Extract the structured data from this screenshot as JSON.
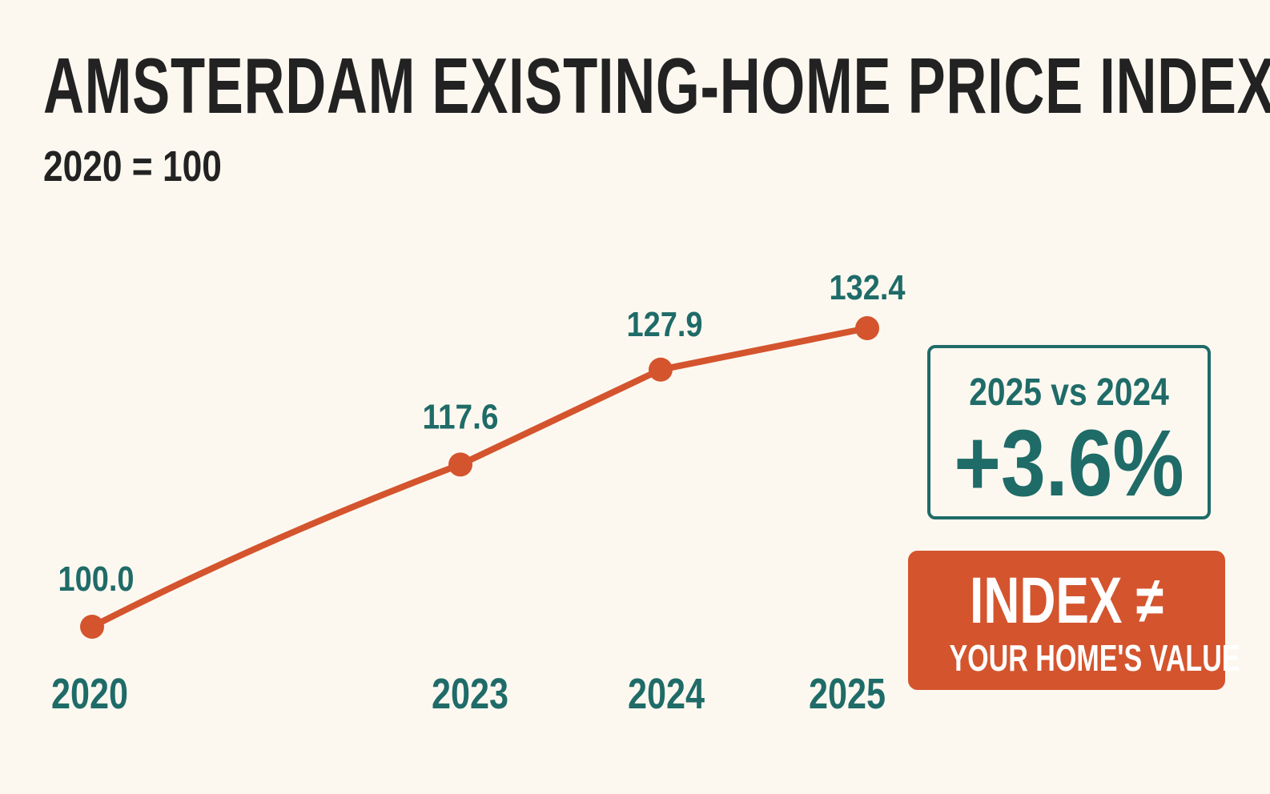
{
  "title": "AMSTERDAM EXISTING-HOME PRICE INDEX",
  "subtitle": "2020 = 100",
  "colors": {
    "background": "#fcf8f0",
    "line": "#d4542d",
    "label": "#1f6b68",
    "title": "#222222"
  },
  "chart_data": {
    "type": "line",
    "title": "AMSTERDAM EXISTING-HOME PRICE INDEX",
    "subtitle": "2020 = 100",
    "x": [
      2020,
      2023,
      2024,
      2025
    ],
    "x_labels": [
      "2020",
      "2023",
      "2024",
      "2025"
    ],
    "series": [
      {
        "values": [
          100.0,
          117.6,
          127.9,
          132.4
        ],
        "labels": [
          "100.0",
          "117.6",
          "127.9",
          "132.4"
        ],
        "color": "#d4542d"
      }
    ],
    "xlabel": "",
    "ylabel": "",
    "grid": false,
    "legend": false
  },
  "callout": {
    "label": "2025 vs 2024",
    "value": "+3.6%"
  },
  "warning": {
    "line1": "INDEX ≠",
    "line2": "YOUR HOME'S VALUE"
  }
}
